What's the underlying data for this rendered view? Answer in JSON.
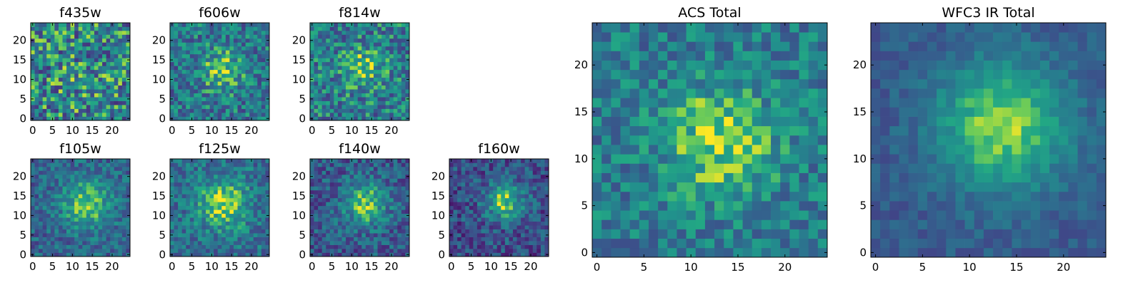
{
  "chart_data": {
    "type": "heatmap",
    "colormap": "viridis",
    "grid": false,
    "panels": [
      {
        "title": "f435w",
        "xticks": [
          0,
          5,
          10,
          15,
          20
        ],
        "yticks": [
          0,
          5,
          10,
          15,
          20
        ],
        "xlim": [
          0,
          25
        ],
        "ylim": [
          0,
          25
        ],
        "source": {
          "kind": "noise",
          "peak_x": 12,
          "peak_y": 10,
          "amplitude": 0.05,
          "sigma": 5,
          "base": 0.55,
          "noise": 0.38,
          "seed": 11
        }
      },
      {
        "title": "f606w",
        "xticks": [
          0,
          5,
          10,
          15,
          20
        ],
        "yticks": [
          0,
          5,
          10,
          15,
          20
        ],
        "xlim": [
          0,
          25
        ],
        "ylim": [
          0,
          25
        ],
        "source": {
          "kind": "gaussian",
          "peak_x": 12.5,
          "peak_y": 12.5,
          "amplitude": 0.35,
          "sigma": 3.5,
          "base": 0.5,
          "noise": 0.28,
          "seed": 23
        }
      },
      {
        "title": "f814w",
        "xticks": [
          0,
          5,
          10,
          15,
          20
        ],
        "yticks": [
          0,
          5,
          10,
          15,
          20
        ],
        "xlim": [
          0,
          25
        ],
        "ylim": [
          0,
          25
        ],
        "source": {
          "kind": "gaussian",
          "peak_x": 13,
          "peak_y": 13,
          "amplitude": 0.3,
          "sigma": 3.5,
          "base": 0.52,
          "noise": 0.3,
          "seed": 37
        }
      },
      {
        "title": "f105w",
        "xticks": [
          0,
          5,
          10,
          15,
          20
        ],
        "yticks": [
          0,
          5,
          10,
          15,
          20
        ],
        "xlim": [
          0,
          25
        ],
        "ylim": [
          0,
          25
        ],
        "source": {
          "kind": "gaussian",
          "peak_x": 13.5,
          "peak_y": 13,
          "amplitude": 0.45,
          "sigma": 4.5,
          "base": 0.4,
          "noise": 0.2,
          "seed": 41
        }
      },
      {
        "title": "f125w",
        "xticks": [
          0,
          5,
          10,
          15,
          20
        ],
        "yticks": [
          0,
          5,
          10,
          15,
          20
        ],
        "xlim": [
          0,
          25
        ],
        "ylim": [
          0,
          25
        ],
        "source": {
          "kind": "gaussian",
          "peak_x": 13,
          "peak_y": 13,
          "amplitude": 0.45,
          "sigma": 4.5,
          "base": 0.45,
          "noise": 0.22,
          "seed": 53
        }
      },
      {
        "title": "f140w",
        "xticks": [
          0,
          5,
          10,
          15,
          20
        ],
        "yticks": [
          0,
          5,
          10,
          15,
          20
        ],
        "xlim": [
          0,
          25
        ],
        "ylim": [
          0,
          25
        ],
        "source": {
          "kind": "gaussian",
          "peak_x": 13.5,
          "peak_y": 13,
          "amplitude": 0.5,
          "sigma": 4,
          "base": 0.35,
          "noise": 0.22,
          "seed": 67
        }
      },
      {
        "title": "f160w",
        "xticks": [
          0,
          5,
          10,
          15,
          20
        ],
        "yticks": [
          0,
          5,
          10,
          15,
          20
        ],
        "xlim": [
          0,
          25
        ],
        "ylim": [
          0,
          25
        ],
        "source": {
          "kind": "gaussian",
          "peak_x": 13.5,
          "peak_y": 13.5,
          "amplitude": 0.55,
          "sigma": 3.5,
          "base": 0.3,
          "noise": 0.22,
          "seed": 79
        }
      },
      {
        "title": "ACS Total",
        "xticks": [
          0,
          5,
          10,
          15,
          20
        ],
        "yticks": [
          0,
          5,
          10,
          15,
          20
        ],
        "xlim": [
          0,
          25
        ],
        "ylim": [
          0,
          25
        ],
        "source": {
          "kind": "gaussian",
          "peak_x": 13,
          "peak_y": 12,
          "amplitude": 0.38,
          "sigma": 4,
          "base": 0.52,
          "noise": 0.22,
          "seed": 97
        }
      },
      {
        "title": "WFC3 IR Total",
        "xticks": [
          0,
          5,
          10,
          15,
          20
        ],
        "yticks": [
          0,
          5,
          10,
          15,
          20
        ],
        "xlim": [
          0,
          25
        ],
        "ylim": [
          0,
          25
        ],
        "source": {
          "kind": "gaussian",
          "peak_x": 13.5,
          "peak_y": 13.5,
          "amplitude": 0.55,
          "sigma": 5,
          "base": 0.35,
          "noise": 0.1,
          "seed": 113
        }
      }
    ]
  }
}
